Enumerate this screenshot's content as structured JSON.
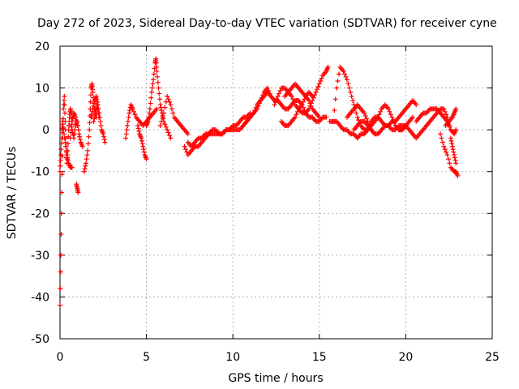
{
  "chart_data": {
    "type": "scatter",
    "title": "Day 272 of 2023, Sidereal Day-to-day VTEC variation (SDTVAR) for receiver cyne",
    "xlabel": "GPS time / hours",
    "ylabel": "SDTVAR / TECUs",
    "xlim": [
      0,
      25
    ],
    "ylim": [
      -50,
      20
    ],
    "xticks": [
      "0",
      "5",
      "10",
      "15",
      "20",
      "25"
    ],
    "yticks": [
      "20",
      "10",
      "0",
      "-10",
      "-20",
      "-30",
      "-40",
      "-50"
    ],
    "grid": true,
    "marker": "+",
    "color": "#ff0000",
    "series": [
      {
        "name": "t0",
        "x": [
          0.0,
          0.05,
          0.1,
          0.15,
          0.2,
          0.25,
          0.3,
          0.35,
          0.4,
          0.45,
          0.5,
          0.55,
          0.6,
          0.65,
          0.7,
          0.8,
          0.9,
          1.0,
          1.1,
          1.2,
          1.3
        ],
        "y": [
          -42,
          -30,
          -15,
          -2,
          5,
          8,
          2,
          -4,
          -8,
          -5,
          0,
          3,
          5,
          4,
          0,
          -2,
          1,
          2,
          -1,
          -3,
          -4
        ]
      },
      {
        "name": "t0b",
        "x": [
          0.0,
          0.05,
          0.1,
          0.15,
          0.2,
          0.3,
          0.4,
          0.5,
          0.6,
          0.7
        ],
        "y": [
          -10,
          -6,
          -2,
          2,
          0,
          -3,
          -6,
          -8,
          -9,
          -9
        ]
      },
      {
        "name": "t0c",
        "x": [
          0.6,
          0.7,
          0.8,
          0.9,
          1.0
        ],
        "y": [
          -2,
          2,
          4,
          3,
          1
        ]
      },
      {
        "name": "t1",
        "x": [
          0.95,
          1.0,
          1.05
        ],
        "y": [
          -13,
          -14,
          -15
        ]
      },
      {
        "name": "t2",
        "x": [
          1.4,
          1.5,
          1.6,
          1.7,
          1.75,
          1.8,
          1.85,
          1.9,
          2.0,
          2.1
        ],
        "y": [
          -10,
          -8,
          -5,
          0,
          5,
          10,
          11,
          9,
          5,
          3
        ]
      },
      {
        "name": "t3",
        "x": [
          1.8,
          1.9,
          2.0,
          2.1,
          2.2,
          2.3,
          2.4,
          2.5,
          2.6
        ],
        "y": [
          3,
          5,
          7,
          8,
          6,
          3,
          0,
          -1,
          -3
        ]
      },
      {
        "name": "t4",
        "x": [
          1.95,
          2.05,
          2.15,
          2.25
        ],
        "y": [
          2,
          4,
          6,
          3
        ]
      },
      {
        "name": "t5",
        "x": [
          3.8,
          3.9,
          4.0,
          4.1,
          4.2,
          4.4,
          4.6,
          4.8,
          5.0,
          5.2,
          5.4,
          5.6
        ],
        "y": [
          -2,
          1,
          4,
          6,
          5,
          3,
          2,
          1,
          2,
          3,
          4,
          5
        ]
      },
      {
        "name": "t6",
        "x": [
          4.5,
          4.6,
          4.7,
          4.8,
          4.9,
          5.0
        ],
        "y": [
          1,
          -1,
          -2,
          -4,
          -6,
          -7
        ]
      },
      {
        "name": "t7",
        "x": [
          5.0,
          5.1,
          5.2,
          5.3,
          5.4,
          5.5,
          5.55,
          5.6,
          5.7,
          5.8,
          5.9,
          6.0,
          6.2,
          6.4
        ],
        "y": [
          1,
          2,
          5,
          9,
          12,
          16,
          17,
          14,
          10,
          6,
          4,
          2,
          0,
          -2
        ]
      },
      {
        "name": "t8",
        "x": [
          5.8,
          6.0,
          6.2,
          6.4,
          6.6,
          6.8,
          7.0,
          7.2,
          7.4
        ],
        "y": [
          1,
          4,
          8,
          6,
          3,
          2,
          1,
          0,
          -1
        ]
      },
      {
        "name": "t9",
        "x": [
          7.2,
          7.4,
          7.6,
          7.8,
          8.0,
          8.2,
          8.4,
          8.6,
          8.8,
          9.0,
          9.2,
          9.4,
          9.6,
          9.8,
          10.0,
          10.2,
          10.4,
          10.6,
          10.8,
          11.0,
          11.2,
          11.4,
          11.6,
          11.8,
          12.0,
          12.2
        ],
        "y": [
          -4,
          -6,
          -5,
          -4,
          -4,
          -3,
          -2,
          -1,
          -1,
          -1,
          -1,
          -1,
          0,
          0,
          0,
          0,
          0,
          1,
          2,
          3,
          4,
          5,
          7,
          9,
          10,
          8
        ]
      },
      {
        "name": "t10",
        "x": [
          7.4,
          7.6,
          7.8,
          8.0,
          8.2,
          8.4,
          8.6,
          8.8,
          9.0,
          9.2,
          9.4,
          9.6,
          9.8,
          10.0,
          10.2,
          10.4,
          10.6,
          10.8,
          11.0
        ],
        "y": [
          -3,
          -4,
          -3,
          -2,
          -2,
          -1,
          -1,
          0,
          0,
          -1,
          -1,
          0,
          0,
          1,
          1,
          2,
          3,
          3,
          4
        ]
      },
      {
        "name": "t11",
        "x": [
          10.6,
          10.8,
          11.0,
          11.2,
          11.4,
          11.6,
          11.8,
          12.0,
          12.2,
          12.4,
          12.6,
          12.8,
          13.0,
          13.2,
          13.4,
          13.6,
          13.8,
          14.0,
          14.2,
          14.4,
          14.6,
          14.8,
          15.0,
          15.2,
          15.4
        ],
        "y": [
          1,
          2,
          3,
          4,
          6,
          7,
          8,
          9,
          8,
          7,
          7,
          6,
          5,
          5,
          6,
          7,
          7,
          6,
          4,
          3,
          3,
          2,
          2,
          3,
          3
        ]
      },
      {
        "name": "t12",
        "x": [
          12.4,
          12.6,
          12.8,
          13.0,
          13.2,
          13.4,
          13.6,
          13.8,
          14.0,
          14.2,
          14.4,
          14.6,
          14.8,
          15.0,
          15.2,
          15.4,
          15.5
        ],
        "y": [
          6,
          8,
          10,
          10,
          9,
          8,
          6,
          5,
          4,
          4,
          5,
          7,
          9,
          11,
          13,
          14,
          15
        ]
      },
      {
        "name": "t13",
        "x": [
          12.8,
          13.0,
          13.2,
          13.4,
          13.6,
          13.8,
          14.0,
          14.2,
          14.4,
          14.6
        ],
        "y": [
          2,
          1,
          1,
          2,
          3,
          5,
          6,
          8,
          9,
          8
        ]
      },
      {
        "name": "t14",
        "x": [
          13.0,
          13.2,
          13.4,
          13.6,
          13.8,
          14.0,
          14.2,
          14.4,
          14.6,
          14.8,
          15.0
        ],
        "y": [
          8,
          9,
          10,
          11,
          10,
          9,
          8,
          7,
          5,
          4,
          3
        ]
      },
      {
        "name": "t15",
        "x": [
          15.8,
          16.0,
          16.2,
          16.4,
          16.6,
          16.8,
          17.0,
          17.2,
          17.4,
          17.6,
          17.8,
          18.0,
          18.2,
          18.4,
          18.6,
          18.8,
          19.0,
          19.2,
          19.4,
          19.6,
          19.8,
          20.0
        ],
        "y": [
          2,
          10,
          15,
          14,
          12,
          9,
          6,
          3,
          1,
          0,
          0,
          2,
          3,
          3,
          2,
          1,
          1,
          0,
          0,
          1,
          1,
          1
        ]
      },
      {
        "name": "t16",
        "x": [
          15.6,
          15.8,
          16.0,
          16.2,
          16.4,
          16.6,
          16.8,
          17.0,
          17.2,
          17.4,
          17.6,
          17.8,
          18.0,
          18.2,
          18.4,
          18.6,
          18.8,
          19.0,
          19.2,
          19.4,
          19.6,
          19.8,
          20.0,
          20.2,
          20.4
        ],
        "y": [
          2,
          2,
          2,
          1,
          0,
          0,
          -1,
          -1,
          -2,
          -1,
          -1,
          0,
          1,
          2,
          3,
          5,
          6,
          5,
          3,
          1,
          0,
          0,
          1,
          2,
          3
        ]
      },
      {
        "name": "t17",
        "x": [
          16.6,
          16.8,
          17.0,
          17.2,
          17.4,
          17.6,
          17.8,
          18.0,
          18.2,
          18.4,
          18.6,
          18.8,
          19.0,
          19.2,
          19.4,
          19.6,
          19.8,
          20.0,
          20.2,
          20.4,
          20.6
        ],
        "y": [
          3,
          4,
          5,
          6,
          5,
          4,
          2,
          0,
          -1,
          -1,
          0,
          1,
          1,
          2,
          2,
          3,
          4,
          5,
          6,
          7,
          6
        ]
      },
      {
        "name": "t18",
        "x": [
          17.0,
          17.2,
          17.4,
          17.6,
          17.8,
          18.0,
          18.2
        ],
        "y": [
          0,
          1,
          2,
          2,
          1,
          0,
          -1
        ]
      },
      {
        "name": "t19",
        "x": [
          19.6,
          19.8,
          20.0,
          20.2,
          20.4,
          20.6,
          20.8,
          21.0,
          21.2,
          21.4,
          21.6,
          21.8,
          22.0,
          22.2,
          22.4,
          22.6
        ],
        "y": [
          0,
          0,
          1,
          0,
          -1,
          -2,
          -1,
          0,
          1,
          2,
          3,
          4,
          5,
          5,
          3,
          0
        ]
      },
      {
        "name": "t20",
        "x": [
          20.6,
          20.8,
          21.0,
          21.2,
          21.4,
          21.6,
          21.8,
          22.0,
          22.2,
          22.4,
          22.6,
          22.8,
          22.9
        ],
        "y": [
          2,
          3,
          4,
          4,
          5,
          5,
          5,
          4,
          3,
          2,
          0,
          -1,
          0
        ]
      },
      {
        "name": "t21",
        "x": [
          22.0,
          22.2,
          22.4,
          22.6,
          22.8,
          22.9,
          23.0
        ],
        "y": [
          -1,
          -4,
          -6,
          -9,
          -10,
          -10,
          -11
        ]
      },
      {
        "name": "t22",
        "x": [
          22.3,
          22.5,
          22.7,
          22.8,
          22.9
        ],
        "y": [
          1,
          2,
          3,
          4,
          5
        ]
      },
      {
        "name": "t23",
        "x": [
          22.6,
          22.7,
          22.8,
          22.9
        ],
        "y": [
          -2,
          -4,
          -6,
          -8
        ]
      }
    ]
  }
}
